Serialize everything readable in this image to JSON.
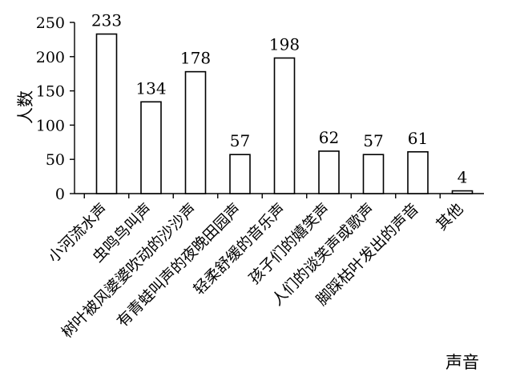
{
  "chart_data": {
    "type": "bar",
    "categories": [
      "小河流水声",
      "虫鸣鸟叫声",
      "树叶被风婆婆吹动的沙沙声",
      "有青蛙叫声的夜晚田园声",
      "轻柔舒缓的音乐声",
      "孩子们的嬉笑声",
      "人们的谈笑声或歌声",
      "脚踩枯叶发出的声音",
      "其他"
    ],
    "values": [
      233,
      134,
      178,
      57,
      198,
      62,
      57,
      61,
      4
    ],
    "xlabel": "声音",
    "ylabel": "人数",
    "ylim": [
      0,
      250
    ],
    "yticks": [
      0,
      50,
      100,
      150,
      200,
      250
    ],
    "grid": false,
    "legend": "none"
  }
}
